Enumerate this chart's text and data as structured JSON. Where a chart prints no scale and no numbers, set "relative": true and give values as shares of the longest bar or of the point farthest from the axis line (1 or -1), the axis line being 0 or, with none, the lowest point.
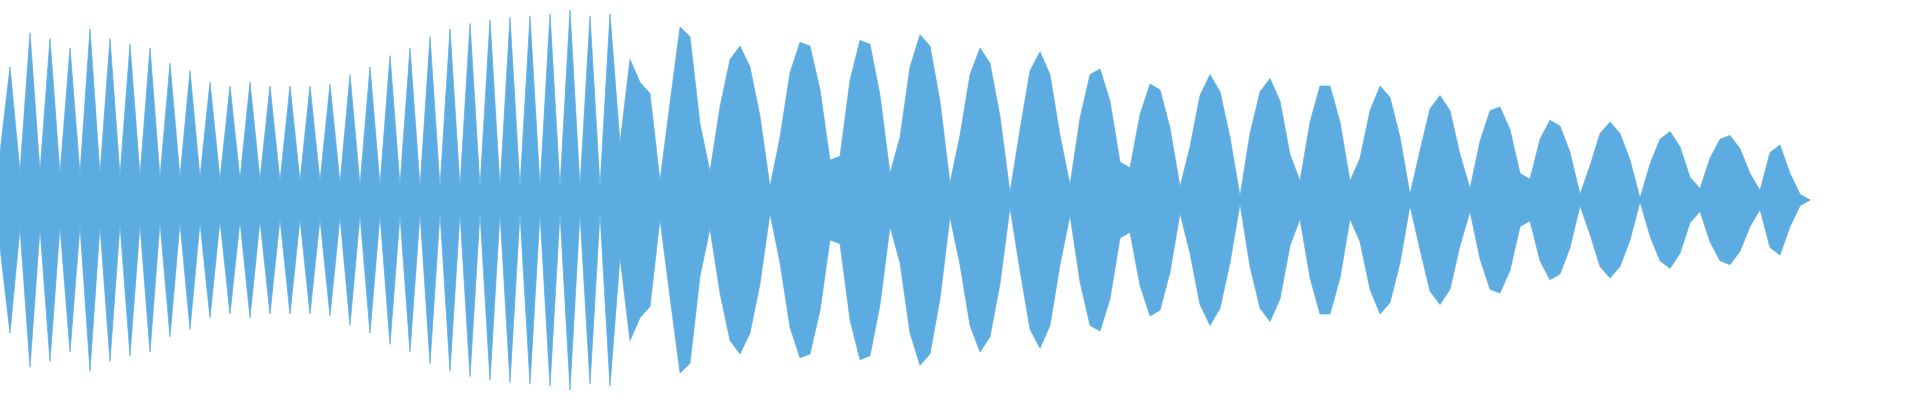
{
  "chart_data": {
    "type": "area",
    "relative": true,
    "categories": [
      null,
      null,
      null,
      null,
      null,
      null,
      null,
      null,
      null,
      null,
      null,
      null,
      null,
      null,
      null,
      null,
      null,
      null,
      null,
      null,
      null,
      null,
      null,
      null,
      null,
      null,
      null,
      null,
      null,
      null,
      null,
      null,
      null,
      null,
      null,
      null,
      null,
      null,
      null,
      null,
      null,
      null,
      null,
      null,
      null,
      null,
      null,
      null,
      null,
      null,
      null,
      null,
      null,
      null,
      null,
      null,
      null,
      null,
      null,
      null,
      null,
      null,
      null,
      null,
      null,
      null,
      null,
      null,
      null,
      null,
      null,
      null,
      null,
      null,
      null,
      null,
      null,
      null,
      null,
      null,
      null,
      null,
      null,
      null,
      null,
      null,
      null,
      null,
      null,
      null,
      null,
      null,
      null,
      null,
      null,
      null,
      null,
      null,
      null,
      null,
      null,
      null,
      null,
      null,
      null,
      null,
      null,
      null,
      null,
      null,
      null,
      null,
      null,
      null,
      null,
      null,
      null,
      null,
      null,
      null,
      null,
      null,
      null,
      null,
      null,
      null,
      null,
      null,
      null,
      null,
      null,
      null,
      null,
      null,
      null,
      null,
      null,
      null,
      null,
      null,
      null,
      null,
      null,
      null,
      null,
      null,
      null,
      null,
      null,
      null,
      null,
      null,
      null,
      null,
      null,
      null,
      null,
      null,
      null,
      null,
      null,
      null,
      null,
      null,
      null,
      null,
      null,
      null,
      null,
      null,
      null,
      null,
      null,
      null,
      null,
      null,
      null,
      null,
      null,
      null,
      null,
      null
    ],
    "series": [
      {
        "color": "#5dace1",
        "values": [
          0.25,
          0.7,
          0.15,
          0.88,
          0.15,
          0.85,
          0.14,
          0.8,
          0.14,
          0.9,
          0.14,
          0.85,
          0.13,
          0.82,
          0.13,
          0.8,
          0.12,
          0.72,
          0.12,
          0.68,
          0.12,
          0.62,
          0.11,
          0.6,
          0.11,
          0.62,
          0.11,
          0.6,
          0.1,
          0.6,
          0.1,
          0.6,
          0.1,
          0.61,
          0.09,
          0.66,
          0.08,
          0.7,
          0.08,
          0.76,
          0.08,
          0.8,
          0.07,
          0.86,
          0.07,
          0.9,
          0.07,
          0.93,
          0.07,
          0.95,
          0.07,
          0.96,
          0.07,
          0.97,
          0.07,
          0.98,
          0.07,
          1.0,
          0.07,
          0.97,
          0.07,
          0.98,
          0.3,
          0.74,
          0.62,
          0.56,
          0.1,
          0.51,
          0.91,
          0.86,
          0.4,
          0.15,
          0.49,
          0.74,
          0.81,
          0.7,
          0.44,
          0.07,
          0.33,
          0.67,
          0.83,
          0.81,
          0.58,
          0.21,
          0.23,
          0.63,
          0.84,
          0.82,
          0.55,
          0.14,
          0.33,
          0.7,
          0.87,
          0.81,
          0.52,
          0.09,
          0.34,
          0.66,
          0.8,
          0.72,
          0.44,
          0.04,
          0.37,
          0.68,
          0.78,
          0.66,
          0.34,
          0.08,
          0.43,
          0.66,
          0.69,
          0.52,
          0.2,
          0.17,
          0.45,
          0.61,
          0.58,
          0.38,
          0.07,
          0.28,
          0.55,
          0.66,
          0.57,
          0.33,
          0.02,
          0.35,
          0.57,
          0.64,
          0.52,
          0.24,
          0.1,
          0.41,
          0.6,
          0.6,
          0.41,
          0.1,
          0.22,
          0.47,
          0.6,
          0.54,
          0.33,
          0.03,
          0.26,
          0.48,
          0.55,
          0.47,
          0.24,
          0.06,
          0.31,
          0.47,
          0.49,
          0.37,
          0.14,
          0.11,
          0.32,
          0.42,
          0.39,
          0.25,
          0.03,
          0.18,
          0.35,
          0.41,
          0.35,
          0.21,
          0.01,
          0.19,
          0.32,
          0.36,
          0.28,
          0.12,
          0.06,
          0.22,
          0.32,
          0.34,
          0.27,
          0.14,
          0.05,
          0.25,
          0.29,
          0.14,
          0.03,
          0
        ]
      },
      {
        "color": "#5dace1",
        "values": [
          -0.25,
          -0.7,
          -0.15,
          -0.88,
          -0.15,
          -0.85,
          -0.14,
          -0.8,
          -0.14,
          -0.9,
          -0.14,
          -0.85,
          -0.13,
          -0.82,
          -0.13,
          -0.8,
          -0.12,
          -0.72,
          -0.12,
          -0.68,
          -0.12,
          -0.62,
          -0.11,
          -0.6,
          -0.11,
          -0.62,
          -0.11,
          -0.6,
          -0.1,
          -0.6,
          -0.1,
          -0.6,
          -0.1,
          -0.61,
          -0.09,
          -0.66,
          -0.08,
          -0.7,
          -0.08,
          -0.76,
          -0.08,
          -0.8,
          -0.07,
          -0.86,
          -0.07,
          -0.9,
          -0.07,
          -0.93,
          -0.07,
          -0.95,
          -0.07,
          -0.96,
          -0.07,
          -0.97,
          -0.07,
          -0.98,
          -0.07,
          -1.0,
          -0.07,
          -0.97,
          -0.07,
          -0.98,
          -0.3,
          -0.74,
          -0.62,
          -0.56,
          -0.1,
          -0.51,
          -0.91,
          -0.86,
          -0.4,
          -0.15,
          -0.49,
          -0.74,
          -0.81,
          -0.7,
          -0.44,
          -0.07,
          -0.33,
          -0.67,
          -0.83,
          -0.81,
          -0.58,
          -0.21,
          -0.23,
          -0.63,
          -0.84,
          -0.82,
          -0.55,
          -0.14,
          -0.33,
          -0.7,
          -0.87,
          -0.81,
          -0.52,
          -0.09,
          -0.34,
          -0.66,
          -0.8,
          -0.72,
          -0.44,
          -0.04,
          -0.37,
          -0.68,
          -0.78,
          -0.66,
          -0.34,
          -0.08,
          -0.43,
          -0.66,
          -0.69,
          -0.52,
          -0.2,
          -0.17,
          -0.45,
          -0.61,
          -0.58,
          -0.38,
          -0.07,
          -0.28,
          -0.55,
          -0.66,
          -0.57,
          -0.33,
          -0.02,
          -0.35,
          -0.57,
          -0.64,
          -0.52,
          -0.24,
          -0.1,
          -0.41,
          -0.6,
          -0.6,
          -0.41,
          -0.1,
          -0.22,
          -0.47,
          -0.6,
          -0.54,
          -0.33,
          -0.03,
          -0.26,
          -0.48,
          -0.55,
          -0.47,
          -0.24,
          -0.06,
          -0.31,
          -0.47,
          -0.49,
          -0.37,
          -0.14,
          -0.11,
          -0.32,
          -0.42,
          -0.39,
          -0.25,
          -0.03,
          -0.18,
          -0.35,
          -0.41,
          -0.35,
          -0.21,
          -0.01,
          -0.19,
          -0.32,
          -0.36,
          -0.28,
          -0.12,
          -0.06,
          -0.22,
          -0.32,
          -0.34,
          -0.27,
          -0.14,
          -0.05,
          -0.25,
          -0.29,
          -0.14,
          -0.03,
          0
        ]
      }
    ]
  }
}
